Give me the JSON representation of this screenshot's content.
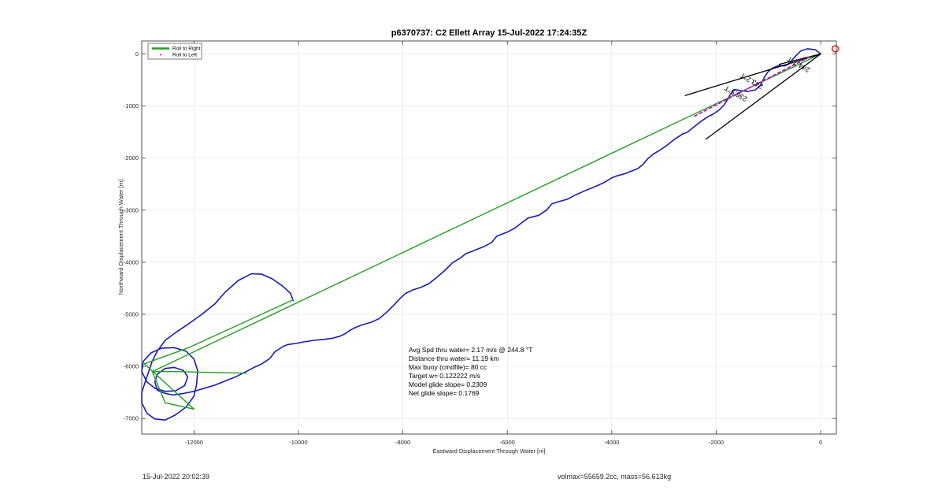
{
  "chart_data": {
    "type": "line",
    "title": "p6370737: C2 Ellett Array 15-Jul-2022 17:24:35Z",
    "xlabel": "Eastward Displacement Through Water [m]",
    "ylabel": "Northward Displacement Through Water [m]",
    "xlim": [
      -13000,
      300
    ],
    "ylim": [
      -7300,
      250
    ],
    "grid": true,
    "xticks": [
      -12000,
      -10000,
      -8000,
      -6000,
      -4000,
      -2000,
      0
    ],
    "yticks": [
      0,
      -1000,
      -2000,
      -3000,
      -4000,
      -5000,
      -6000,
      -7000
    ],
    "legend": {
      "placement": "top-left",
      "entries": [
        {
          "label": "Roll to Right",
          "color": "#1fa01f",
          "style": "line"
        },
        {
          "label": "Roll to Left",
          "color": "#d6205f",
          "style": "dot"
        }
      ]
    },
    "series": [
      {
        "color": "#1a1ab8",
        "points": [
          [
            0,
            0
          ],
          [
            -100,
            80
          ],
          [
            -250,
            100
          ],
          [
            -380,
            60
          ],
          [
            -480,
            -40
          ],
          [
            -560,
            -130
          ],
          [
            -620,
            -200
          ],
          [
            -700,
            -230
          ],
          [
            -800,
            -220
          ],
          [
            -900,
            -260
          ],
          [
            -1000,
            -330
          ],
          [
            -1080,
            -450
          ],
          [
            -1150,
            -600
          ],
          [
            -1250,
            -690
          ],
          [
            -1400,
            -720
          ],
          [
            -1550,
            -700
          ],
          [
            -1650,
            -680
          ],
          [
            -1720,
            -760
          ],
          [
            -1780,
            -870
          ],
          [
            -1850,
            -980
          ],
          [
            -1950,
            -1080
          ],
          [
            -2050,
            -1150
          ],
          [
            -2150,
            -1200
          ],
          [
            -2300,
            -1300
          ],
          [
            -2450,
            -1420
          ],
          [
            -2550,
            -1500
          ],
          [
            -2650,
            -1540
          ],
          [
            -2800,
            -1640
          ],
          [
            -2950,
            -1760
          ],
          [
            -3100,
            -1860
          ],
          [
            -3200,
            -1920
          ],
          [
            -3300,
            -2000
          ],
          [
            -3400,
            -2120
          ],
          [
            -3500,
            -2200
          ],
          [
            -3600,
            -2240
          ],
          [
            -3750,
            -2300
          ],
          [
            -3900,
            -2340
          ],
          [
            -4000,
            -2380
          ],
          [
            -4150,
            -2470
          ],
          [
            -4300,
            -2540
          ],
          [
            -4500,
            -2620
          ],
          [
            -4700,
            -2710
          ],
          [
            -4850,
            -2790
          ],
          [
            -5000,
            -2830
          ],
          [
            -5150,
            -2880
          ],
          [
            -5250,
            -3000
          ],
          [
            -5400,
            -3100
          ],
          [
            -5600,
            -3150
          ],
          [
            -5750,
            -3260
          ],
          [
            -5850,
            -3340
          ],
          [
            -6000,
            -3420
          ],
          [
            -6200,
            -3500
          ],
          [
            -6300,
            -3620
          ],
          [
            -6450,
            -3700
          ],
          [
            -6600,
            -3760
          ],
          [
            -6800,
            -3840
          ],
          [
            -6900,
            -3920
          ],
          [
            -7050,
            -4010
          ],
          [
            -7200,
            -4160
          ],
          [
            -7350,
            -4290
          ],
          [
            -7500,
            -4410
          ],
          [
            -7650,
            -4480
          ],
          [
            -7800,
            -4530
          ],
          [
            -7950,
            -4600
          ],
          [
            -8050,
            -4690
          ],
          [
            -8150,
            -4800
          ],
          [
            -8300,
            -4950
          ],
          [
            -8450,
            -5080
          ],
          [
            -8600,
            -5150
          ],
          [
            -8800,
            -5210
          ],
          [
            -8900,
            -5250
          ],
          [
            -9000,
            -5300
          ],
          [
            -9100,
            -5370
          ],
          [
            -9200,
            -5420
          ],
          [
            -9350,
            -5460
          ],
          [
            -9500,
            -5480
          ],
          [
            -9700,
            -5500
          ],
          [
            -9900,
            -5530
          ],
          [
            -10050,
            -5560
          ],
          [
            -10200,
            -5580
          ],
          [
            -10300,
            -5620
          ],
          [
            -10450,
            -5720
          ],
          [
            -10550,
            -5850
          ],
          [
            -10700,
            -5950
          ],
          [
            -10850,
            -6020
          ],
          [
            -11000,
            -6100
          ],
          [
            -11200,
            -6200
          ],
          [
            -11400,
            -6280
          ],
          [
            -11600,
            -6360
          ],
          [
            -11800,
            -6420
          ],
          [
            -12000,
            -6480
          ],
          [
            -12200,
            -6520
          ],
          [
            -12400,
            -6550
          ],
          [
            -12550,
            -6520
          ],
          [
            -12700,
            -6460
          ],
          [
            -12750,
            -6300
          ],
          [
            -12700,
            -6150
          ],
          [
            -12550,
            -6040
          ],
          [
            -12380,
            -6020
          ],
          [
            -12200,
            -6080
          ],
          [
            -12120,
            -6200
          ],
          [
            -12180,
            -6370
          ],
          [
            -12350,
            -6470
          ],
          [
            -12550,
            -6480
          ],
          [
            -12750,
            -6420
          ],
          [
            -12900,
            -6300
          ],
          [
            -13000,
            -6100
          ],
          [
            -12970,
            -5900
          ],
          [
            -12820,
            -5740
          ],
          [
            -12620,
            -5650
          ],
          [
            -12380,
            -5640
          ],
          [
            -12150,
            -5710
          ],
          [
            -12000,
            -5860
          ],
          [
            -11930,
            -6080
          ],
          [
            -11950,
            -6350
          ],
          [
            -12000,
            -6570
          ],
          [
            -12150,
            -6780
          ],
          [
            -12350,
            -6930
          ],
          [
            -12550,
            -7030
          ],
          [
            -12750,
            -7010
          ],
          [
            -12900,
            -6900
          ],
          [
            -13000,
            -6700
          ],
          [
            -13000,
            -6500
          ],
          [
            -12900,
            -6200
          ],
          [
            -12800,
            -5900
          ],
          [
            -12700,
            -5700
          ],
          [
            -12550,
            -5500
          ],
          [
            -12350,
            -5350
          ],
          [
            -12100,
            -5180
          ],
          [
            -11850,
            -5000
          ],
          [
            -11600,
            -4800
          ],
          [
            -11400,
            -4570
          ],
          [
            -11150,
            -4350
          ],
          [
            -10900,
            -4220
          ],
          [
            -10700,
            -4230
          ],
          [
            -10500,
            -4320
          ],
          [
            -10300,
            -4460
          ],
          [
            -10150,
            -4600
          ],
          [
            -10100,
            -4740
          ]
        ]
      },
      {
        "color": "#1fa01f",
        "points": [
          [
            0,
            0
          ],
          [
            -12800,
            -6100
          ]
        ]
      },
      {
        "color": "#1fa01f",
        "points": [
          [
            -11000,
            -6130
          ],
          [
            -12350,
            -6100
          ],
          [
            -12800,
            -6100
          ],
          [
            -12550,
            -6700
          ],
          [
            -12000,
            -6820
          ],
          [
            -12950,
            -5950
          ],
          [
            -12100,
            -5640
          ],
          [
            -10100,
            -4720
          ]
        ]
      }
    ],
    "heading_lines": [
      {
        "color": "#000000",
        "points": [
          [
            0,
            0
          ],
          [
            -2600,
            -800
          ]
        ]
      },
      {
        "color": "#000000",
        "points": [
          [
            0,
            0
          ],
          [
            -2200,
            -1640
          ]
        ]
      },
      {
        "color": "#000000",
        "points": [
          [
            0,
            0
          ],
          [
            -800,
            -200
          ]
        ]
      },
      {
        "color": "#cc00cc",
        "points": [
          [
            -200,
            -50
          ],
          [
            -2450,
            -1210
          ]
        ]
      }
    ],
    "heading_labels": [
      "243.2°T",
      "236.5°T",
      "244.7°T"
    ],
    "marker": {
      "x": 280,
      "y": 100,
      "color": "#dd1111",
      "shape": "circle"
    },
    "annotations": [
      "Avg Spd thru water=  2.17 m/s @ 244.8 °T",
      "Distance thru water= 11.19 km",
      "Max buoy (cmdfile)= 80 cc",
      "Target w= 0.122222 m/s",
      "Model glide slope= 0.2309",
      "Net glide slope= 0.1769"
    ]
  },
  "footer": {
    "timestamp": "15-Jul-2022 20:02:39",
    "vol_mass": "volmax=55659.2cc, mass=56.613kg"
  }
}
